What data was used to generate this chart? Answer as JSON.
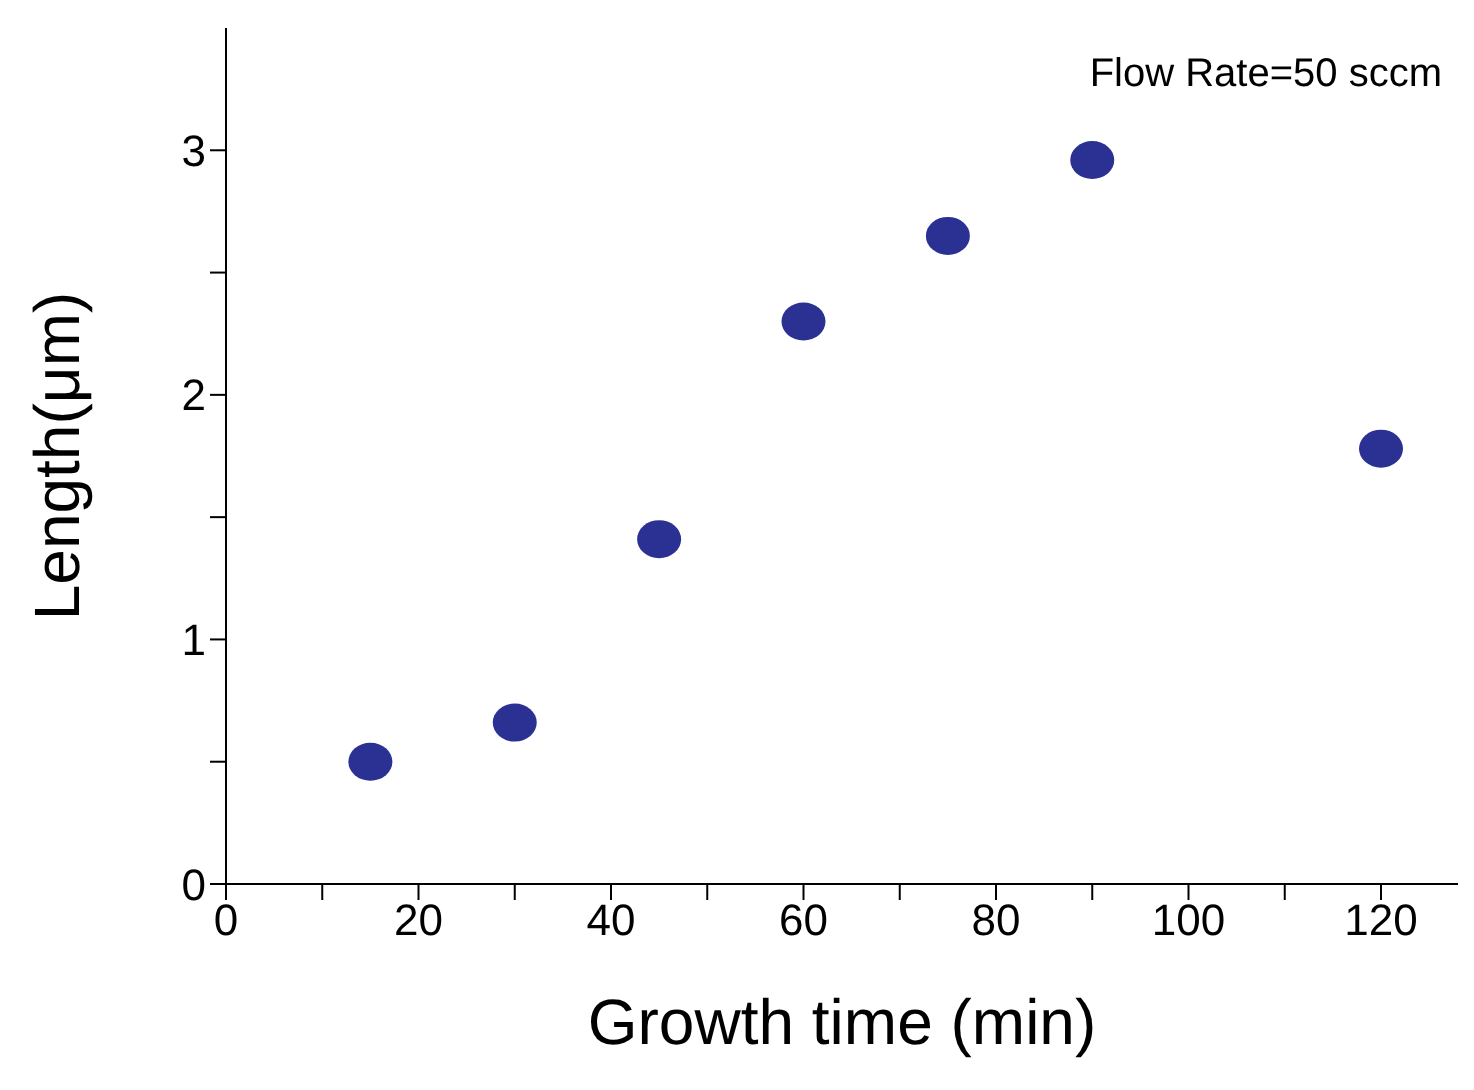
{
  "chart_data": {
    "type": "scatter",
    "xlabel": "Growth time (min)",
    "ylabel": "Length(μm)",
    "x": [
      15,
      30,
      45,
      60,
      75,
      90,
      120
    ],
    "series": [
      {
        "color": "#2b3192",
        "values": [
          0.5,
          0.66,
          1.41,
          2.3,
          2.65,
          2.96,
          1.78
        ]
      }
    ],
    "xlim": [
      0,
      128
    ],
    "ylim": [
      0,
      3.5
    ],
    "xticks": [
      0,
      {
        "value": 10,
        "label": null
      },
      20,
      {
        "value": 30,
        "label": null
      },
      40,
      {
        "value": 50,
        "label": null
      },
      60,
      {
        "value": 70,
        "label": null
      },
      80,
      {
        "value": 90,
        "label": null
      },
      100,
      {
        "value": 110,
        "label": null
      },
      120
    ],
    "yticks": [
      0,
      {
        "value": 0.5,
        "label": null
      },
      1,
      {
        "value": 1.5,
        "label": null
      },
      2,
      {
        "value": 2.5,
        "label": null
      },
      3
    ],
    "annotations": [
      "Flow Rate=50 sccm"
    ],
    "marker": "circle",
    "grid": false,
    "legend": false
  }
}
